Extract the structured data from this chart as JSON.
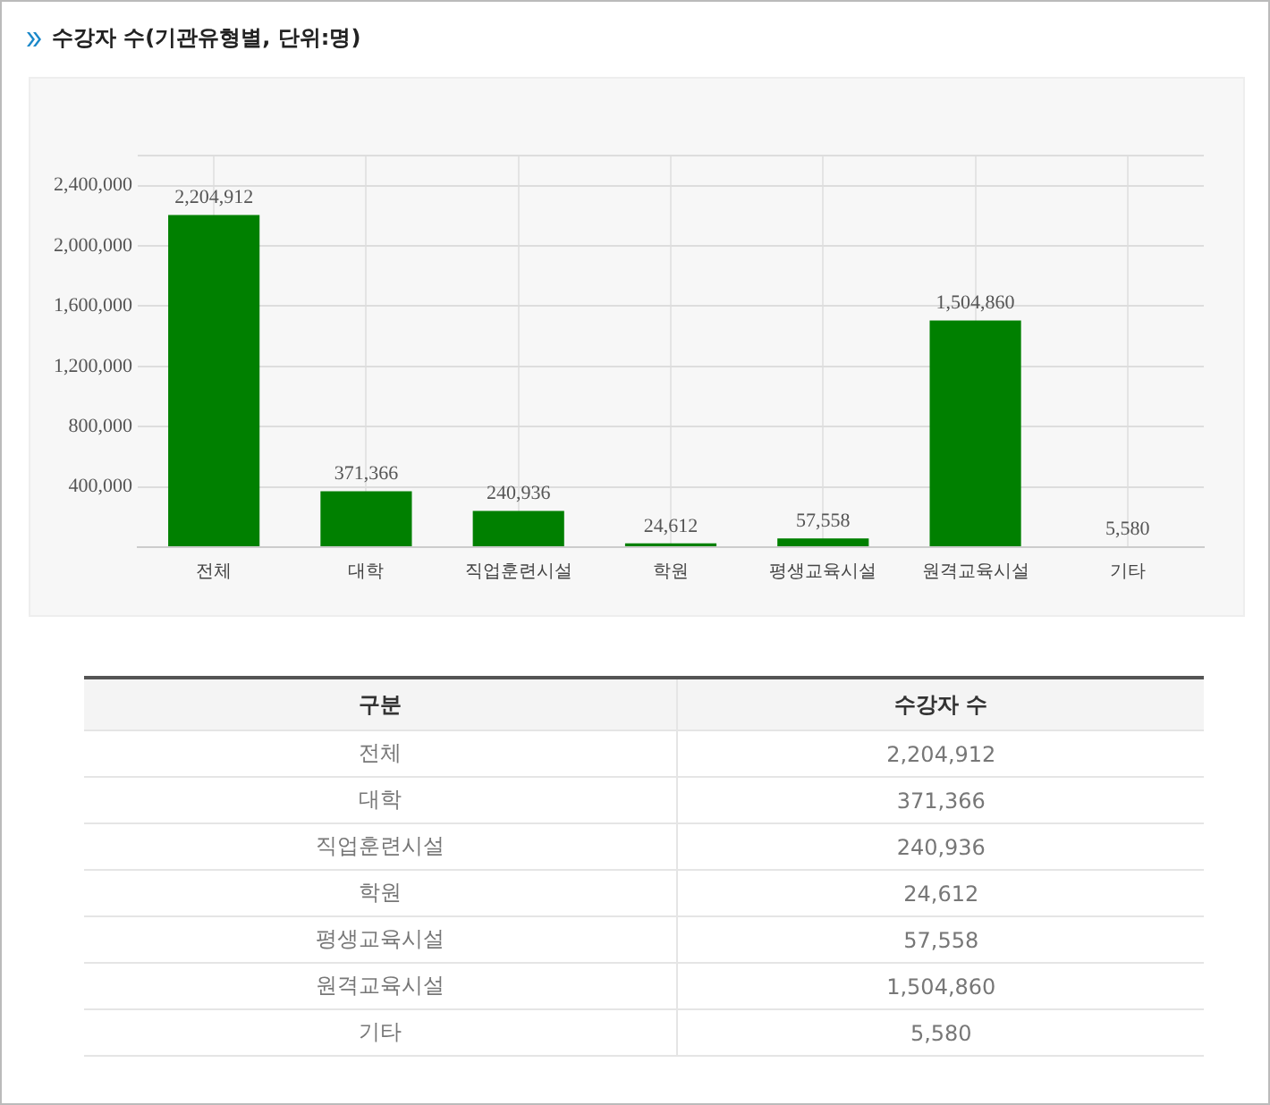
{
  "chart_data": {
    "type": "bar",
    "title": "수강자 수(기관유형별, 단위:명)",
    "categories": [
      "전체",
      "대학",
      "직업훈련시설",
      "학원",
      "평생교육시설",
      "원격교육시설",
      "기타"
    ],
    "values": [
      2204912,
      371366,
      240936,
      24612,
      57558,
      1504860,
      5580
    ],
    "color": "#008000",
    "ylim": [
      0,
      2600000
    ],
    "yticks": [
      {
        "value": 0,
        "label": null
      },
      {
        "value": 400000,
        "label": "400,000"
      },
      {
        "value": 800000,
        "label": "800,000"
      },
      {
        "value": 1200000,
        "label": "1,200,000"
      },
      {
        "value": 1600000,
        "label": "1,600,000"
      },
      {
        "value": 2000000,
        "label": "2,000,000"
      },
      {
        "value": 2400000,
        "label": "2,400,000"
      },
      {
        "value": 2600000,
        "label": null
      }
    ],
    "grid": true,
    "value_labels": [
      "2,204,912",
      "371,366",
      "240,936",
      "24,612",
      "57,558",
      "1,504,860",
      "5,580"
    ],
    "annotations": [
      "구분",
      "수강자 수"
    ]
  }
}
